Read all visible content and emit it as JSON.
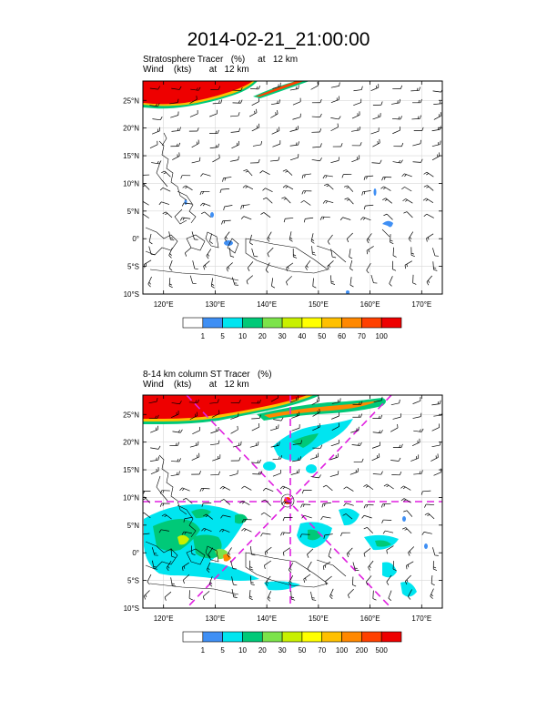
{
  "title": "2014-02-21_21:00:00",
  "panels": [
    {
      "title_line1": "Stratosphere Tracer   (%)     at   12 km",
      "title_line2": "Wind    (kts)       at   12 km",
      "lat_labels": [
        "25°N",
        "20°N",
        "15°N",
        "10°N",
        "5°N",
        "0°",
        "5°S",
        "10°S"
      ],
      "lon_labels": [
        "120°E",
        "130°E",
        "140°E",
        "150°E",
        "160°E",
        "170°E"
      ],
      "colorbar": {
        "labels": [
          "1",
          "5",
          "10",
          "20",
          "30",
          "40",
          "50",
          "60",
          "70",
          "100"
        ],
        "colors": [
          "#ffffff",
          "#3f8ff4",
          "#00e5f0",
          "#00c978",
          "#7ce34a",
          "#c8f000",
          "#ffff00",
          "#ffc000",
          "#ff8800",
          "#ff4000",
          "#ee0000"
        ]
      }
    },
    {
      "title_line1": "8-14 km column ST Tracer   (%)",
      "title_line2": "Wind    (kts)       at   12 km",
      "lat_labels": [
        "25°N",
        "20°N",
        "15°N",
        "10°N",
        "5°N",
        "0°",
        "5°S",
        "10°S"
      ],
      "lon_labels": [
        "120°E",
        "130°E",
        "140°E",
        "150°E",
        "160°E",
        "170°E"
      ],
      "colorbar": {
        "labels": [
          "1",
          "5",
          "10",
          "20",
          "30",
          "50",
          "70",
          "100",
          "200",
          "500"
        ],
        "colors": [
          "#ffffff",
          "#3f8ff4",
          "#00e5f0",
          "#00c978",
          "#7ce34a",
          "#c8f000",
          "#ffff00",
          "#ffc000",
          "#ff8800",
          "#ff4000",
          "#ee0000"
        ]
      }
    }
  ],
  "map_extent": {
    "lon_min": 116,
    "lon_max": 174,
    "lat_min": -10,
    "lat_max": 28.5
  },
  "lat_ticks": [
    25,
    20,
    15,
    10,
    5,
    0,
    -5,
    -10
  ],
  "lon_ticks": [
    120,
    130,
    140,
    150,
    160,
    170
  ]
}
